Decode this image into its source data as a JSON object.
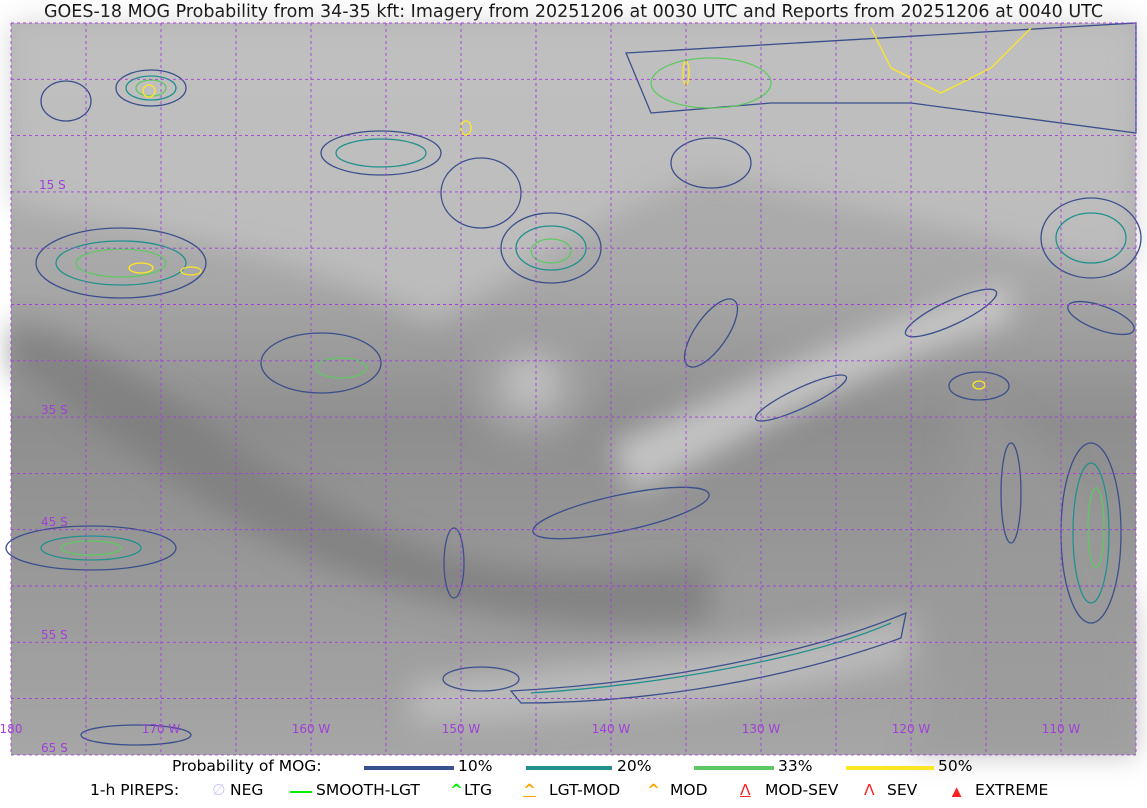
{
  "title": "GOES-18 MOG Probability from 34-35 kft: Imagery from 20251206 at 0030 UTC and Reports from 20251206 at 0040 UTC",
  "map": {
    "lat_labels": [
      "15 S",
      "35 S",
      "45 S",
      "55 S",
      "65 S"
    ],
    "lon_labels": [
      "180",
      "170 W",
      "160 W",
      "150 W",
      "140 W",
      "130 W",
      "120 W",
      "110 W"
    ],
    "grid_color": "#a040d8"
  },
  "legend": {
    "probability_title": "Probability of MOG:",
    "probability_levels": [
      {
        "label": "10%",
        "color": "#3b4f8c"
      },
      {
        "label": "20%",
        "color": "#21918c"
      },
      {
        "label": "33%",
        "color": "#5ec962"
      },
      {
        "label": "50%",
        "color": "#fde725"
      }
    ],
    "pireps_title": "1-h PIREPS:",
    "pireps": [
      {
        "label": "NEG",
        "icon": "null-circle-icon",
        "color": "#c8c8ff"
      },
      {
        "label": "SMOOTH-LGT",
        "icon": "dash-icon",
        "color": "#00ee00"
      },
      {
        "label": "LTG",
        "icon": "caret-icon",
        "color": "#00ee00"
      },
      {
        "label": "LGT-MOD",
        "icon": "caret-bar-icon",
        "color": "#ffa500"
      },
      {
        "label": "MOD",
        "icon": "caret-icon",
        "color": "#ffa500"
      },
      {
        "label": "MOD-SEV",
        "icon": "double-caret-bar-icon",
        "color": "#ff2020"
      },
      {
        "label": "SEV",
        "icon": "double-caret-icon",
        "color": "#ff2020"
      },
      {
        "label": "EXTREME",
        "icon": "filled-triangle-bar-icon",
        "color": "#ff2020"
      }
    ]
  }
}
